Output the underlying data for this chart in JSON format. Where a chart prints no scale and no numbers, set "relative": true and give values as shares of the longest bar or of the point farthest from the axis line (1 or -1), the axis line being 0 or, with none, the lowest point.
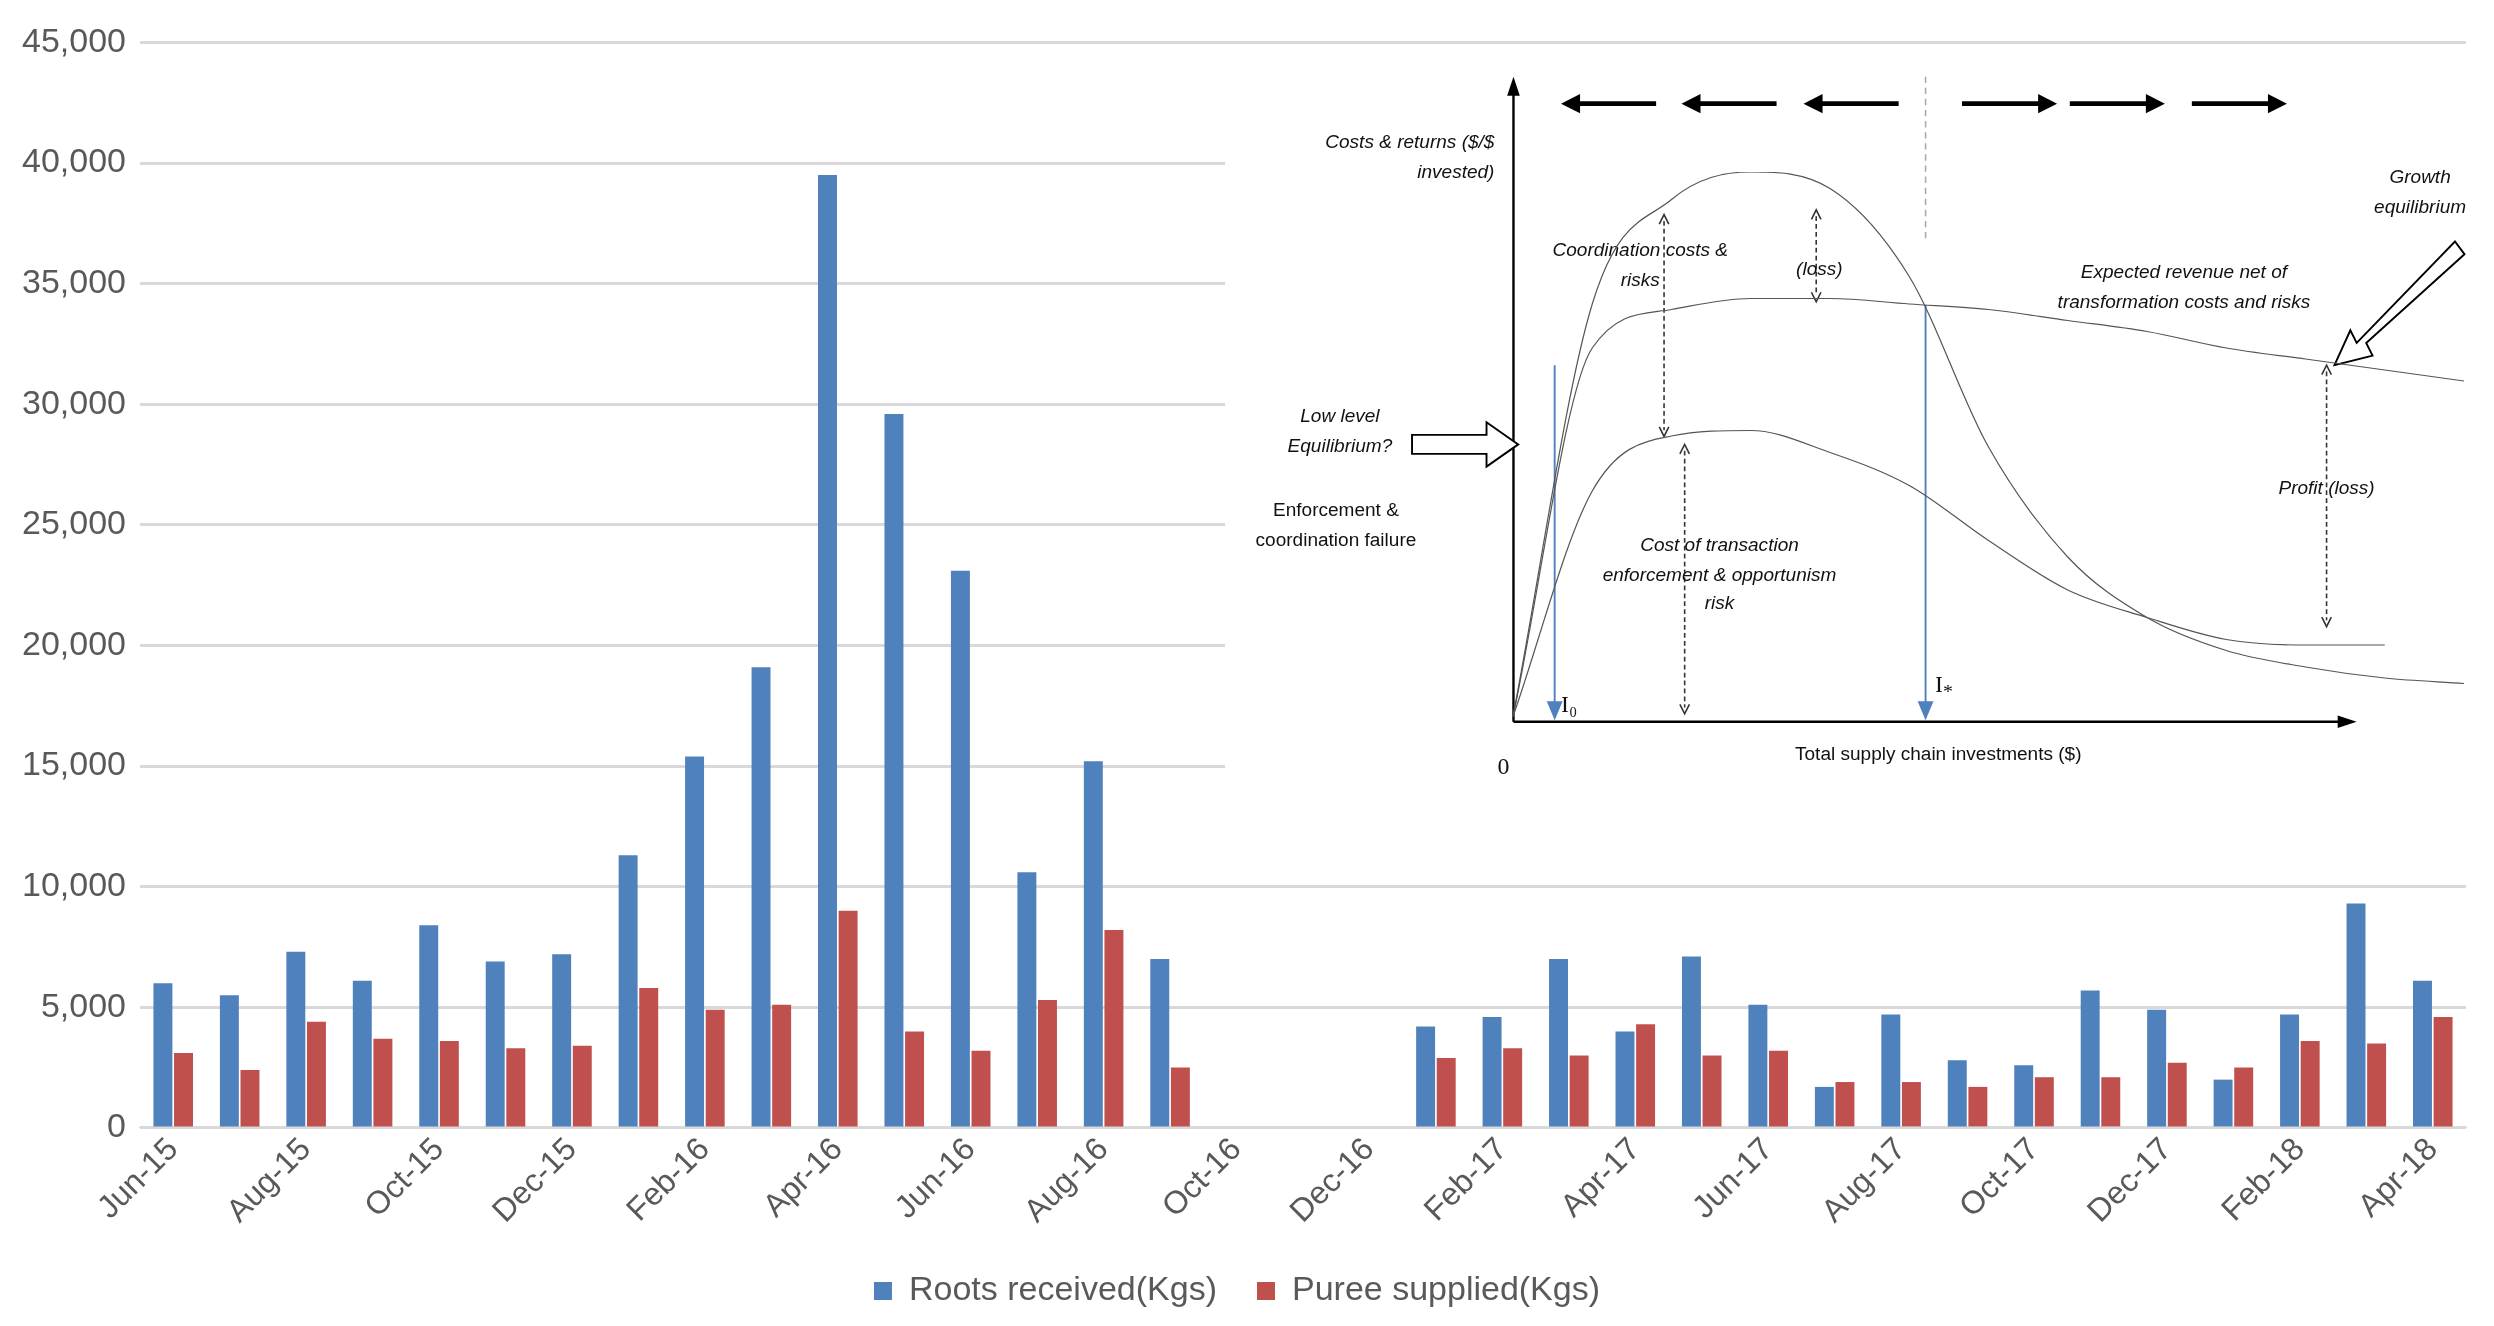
{
  "chart_data": [
    {
      "type": "bar",
      "categories": [
        "Jun-15",
        null,
        "Aug-15",
        null,
        "Oct-15",
        null,
        "Dec-15",
        null,
        "Feb-16",
        null,
        "Apr-16",
        null,
        "Jun-16",
        null,
        "Aug-16",
        null,
        "Oct-16",
        null,
        "Dec-16",
        null,
        "Feb-17",
        null,
        "Apr-17",
        null,
        "Jun-17",
        null,
        "Aug-17",
        null,
        "Oct-17",
        null,
        "Dec-17",
        null,
        "Feb-18",
        null,
        "Apr-18"
      ],
      "series": [
        {
          "name": "Roots received(Kgs)",
          "color": "#4f81bd",
          "values": [
            6000,
            5500,
            7300,
            6100,
            8400,
            6900,
            7200,
            11300,
            15400,
            19100,
            39500,
            29600,
            23100,
            10600,
            15200,
            7000,
            null,
            null,
            null,
            4200,
            4600,
            7000,
            4000,
            7100,
            5100,
            1700,
            4700,
            2800,
            2600,
            5700,
            4900,
            2000,
            4700,
            9300,
            6100
          ]
        },
        {
          "name": "Puree supplied(Kgs)",
          "color": "#c0504d",
          "values": [
            3100,
            2400,
            4400,
            3700,
            3600,
            3300,
            3400,
            5800,
            4900,
            5100,
            9000,
            4000,
            3200,
            5300,
            8200,
            2500,
            null,
            null,
            null,
            2900,
            3300,
            3000,
            4300,
            3000,
            3200,
            1900,
            1900,
            1700,
            2100,
            2100,
            2700,
            2500,
            3600,
            3500,
            4600
          ]
        }
      ],
      "ylim": [
        0,
        45000
      ],
      "yticks": [
        0,
        {
          "value": 5000,
          "label": "5,000"
        },
        {
          "value": 10000,
          "label": "10,000"
        },
        {
          "value": 15000,
          "label": "15,000"
        },
        {
          "value": 20000,
          "label": "20,000"
        },
        {
          "value": 25000,
          "label": "25,000"
        },
        {
          "value": 30000,
          "label": "30,000"
        },
        {
          "value": 35000,
          "label": "35,000"
        },
        {
          "value": 40000,
          "label": "40,000"
        },
        {
          "value": 45000,
          "label": "45,000"
        }
      ],
      "grid": "y",
      "legend": "bottom"
    },
    {
      "type": "line",
      "relative": true,
      "xlabel": "Total supply chain investments ($)",
      "categories": [
        null,
        null,
        null,
        null,
        null,
        null,
        null,
        null,
        null,
        null,
        null,
        null,
        null
      ],
      "series": [
        {
          "color": "#555555",
          "values": [
            0.01,
            0.76,
            0.95,
            1.0,
            0.97,
            0.81,
            0.5,
            0.3,
            0.19,
            0.13,
            0.1,
            0.08,
            0.07
          ]
        },
        {
          "color": "#555555",
          "values": [
            0.01,
            0.68,
            0.75,
            0.77,
            0.77,
            0.76,
            0.75,
            0.73,
            0.71,
            0.68,
            0.66,
            0.64,
            0.62
          ]
        },
        {
          "color": "#555555",
          "values": [
            0.01,
            0.42,
            0.52,
            0.53,
            0.49,
            0.43,
            0.33,
            0.24,
            0.19,
            0.15,
            0.14,
            0.14,
            null
          ]
        }
      ],
      "annotations": [
        "Costs & returns ($/$ invested)",
        "Growth equilibrium",
        "Coordination costs & risks",
        "(loss)",
        "Expected revenue net of transformation costs and risks",
        "Low level Equilibrium?",
        "Enforcement & coordination failure",
        "Profit (loss)",
        "Cost of transaction enforcement & opportunism risk",
        "I₀",
        "I$_{*}$",
        "0"
      ]
    }
  ]
}
